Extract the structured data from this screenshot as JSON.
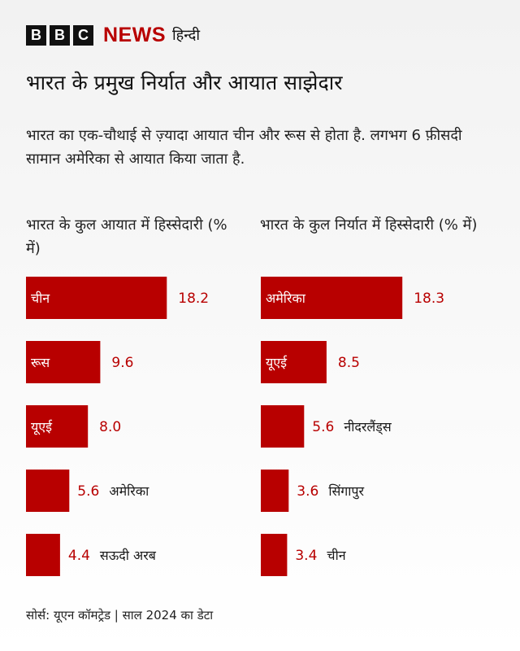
{
  "brand": {
    "b1": "B",
    "b2": "B",
    "b3": "C",
    "news": "NEWS",
    "language": "हिन्दी"
  },
  "title": "भारत के प्रमुख निर्यात और आयात साझेदार",
  "subtitle": "भारत का एक-चौथाई से ज़्यादा आयात चीन और रूस से होता है. लगभग 6 फ़ीसदी सामान अमेरिका से आयात किया जाता है.",
  "colors": {
    "bar": "#b80000",
    "bar_label_inside": "#ffffff",
    "value_inside_label": "#b80000",
    "value_outside_label": "#b80000",
    "category_outside_label": "#1a1a1a"
  },
  "chart_data": [
    {
      "type": "bar",
      "orientation": "horizontal",
      "title": "भारत के कुल आयात में हिस्सेदारी (% में)",
      "categories": [
        "चीन",
        "रूस",
        "यूएई",
        "अमेरिका",
        "सऊदी अरब"
      ],
      "values": [
        18.2,
        9.6,
        8.0,
        5.6,
        4.4
      ],
      "value_labels": [
        "18.2",
        "9.6",
        "8.0",
        "5.6",
        "4.4"
      ]
    },
    {
      "type": "bar",
      "orientation": "horizontal",
      "title": "भारत के कुल निर्यात में हिस्सेदारी (% में)",
      "categories": [
        "अमेरिका",
        "यूएई",
        "नीदरलैंड्स",
        "सिंगापुर",
        "चीन"
      ],
      "values": [
        18.3,
        8.5,
        5.6,
        3.6,
        3.4
      ],
      "value_labels": [
        "18.3",
        "8.5",
        "5.6",
        "3.6",
        "3.4"
      ]
    }
  ],
  "source": "सोर्स: यूएन कॉमट्रेड | साल 2024 का डेटा"
}
